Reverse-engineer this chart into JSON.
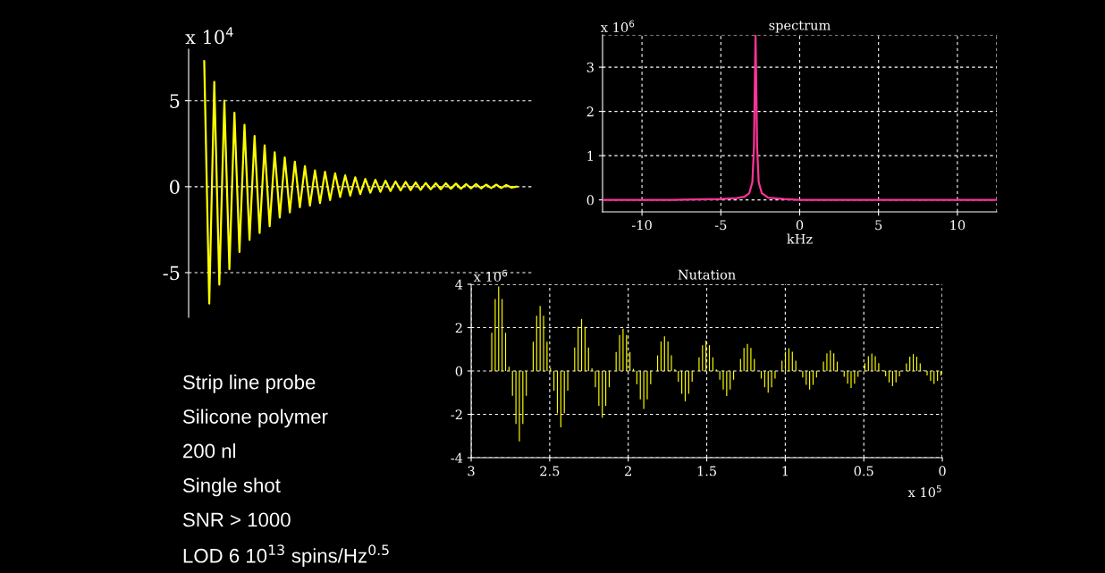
{
  "chart_data": [
    {
      "type": "line",
      "annotations": [
        "x 10$^{4}$"
      ],
      "tick_labels": "y",
      "grid": "y",
      "ylim": [
        -7.6,
        8
      ],
      "yticks": [
        -5,
        0,
        5
      ],
      "categories": [
        null,
        null,
        null,
        null,
        null,
        null,
        null,
        null,
        null,
        null,
        null,
        null,
        null,
        null,
        null,
        null,
        null,
        null,
        null,
        null,
        null,
        null,
        null,
        null,
        null,
        null,
        null,
        null,
        null,
        null,
        null,
        null,
        null,
        null,
        null,
        null,
        null,
        null,
        null,
        null,
        null,
        null,
        null,
        null,
        null,
        null,
        null,
        null,
        null,
        null,
        null,
        null,
        null,
        null,
        null,
        null,
        null,
        null,
        null,
        null,
        null,
        null,
        null
      ],
      "series": [
        {
          "color": "#ffff00",
          "values": [
            7.3,
            -6.8,
            6.1,
            -5.7,
            5.0,
            -4.8,
            4.3,
            -3.8,
            3.6,
            -3.1,
            2.95,
            -2.7,
            2.4,
            -2.3,
            2.0,
            -1.8,
            1.7,
            -1.5,
            1.45,
            -1.2,
            1.2,
            -1.1,
            0.95,
            -0.95,
            0.87,
            -0.78,
            0.78,
            -0.6,
            0.66,
            -0.52,
            0.55,
            -0.43,
            0.45,
            -0.35,
            0.4,
            -0.3,
            0.35,
            -0.25,
            0.3,
            -0.22,
            0.28,
            -0.2,
            0.25,
            -0.18,
            0.22,
            -0.15,
            0.2,
            -0.15,
            0.2,
            -0.12,
            0.18,
            -0.12,
            0.15,
            -0.1,
            0.15,
            -0.1,
            0.12,
            -0.08,
            0.12,
            -0.08,
            0.1,
            -0.05,
            0
          ]
        }
      ]
    },
    {
      "type": "line",
      "title": "spectrum",
      "xlabel": "kHz",
      "annotations": [
        "x 10$^{6}$"
      ],
      "grid": true,
      "xlim": [
        -12.5,
        12.5
      ],
      "xticks": [
        -10,
        -5,
        0,
        5,
        10
      ],
      "ylim": [
        -0.27,
        3.73
      ],
      "yticks": [
        0,
        1,
        2,
        3
      ],
      "x": [
        -12.5,
        -8,
        -5,
        -4,
        -3.5,
        -3.2,
        -3.0,
        -2.9,
        -2.85,
        -2.8,
        -2.75,
        -2.7,
        -2.6,
        -2.4,
        -2,
        -1,
        0,
        5,
        12.5
      ],
      "series": [
        {
          "color": "#ff3399",
          "values": [
            0,
            0,
            0.02,
            0.04,
            0.07,
            0.15,
            0.4,
            1.2,
            2.5,
            3.73,
            2.5,
            1.2,
            0.4,
            0.15,
            0.05,
            0.02,
            0,
            0,
            0
          ]
        }
      ]
    },
    {
      "type": "bar",
      "title": "Nutation",
      "annotations": [
        "x 10$^{6}$",
        "x 10$^{5}$"
      ],
      "grid": true,
      "xlim": [
        3,
        0
      ],
      "xticks": [
        3,
        2.5,
        2,
        1.5,
        1,
        0.5,
        0
      ],
      "ylim": [
        -4,
        4
      ],
      "yticks": [
        -4,
        -2,
        0,
        2,
        4
      ],
      "x": [
        2.869,
        2.847,
        2.825,
        2.803,
        2.781,
        2.759,
        2.737,
        2.715,
        2.693,
        2.671,
        2.649,
        2.627,
        2.605,
        2.583,
        2.561,
        2.539,
        2.517,
        2.495,
        2.473,
        2.451,
        2.429,
        2.407,
        2.385,
        2.363,
        2.341,
        2.319,
        2.297,
        2.275,
        2.253,
        2.231,
        2.209,
        2.187,
        2.165,
        2.143,
        2.121,
        2.099,
        2.077,
        2.055,
        2.033,
        2.011,
        1.989,
        1.967,
        1.945,
        1.923,
        1.901,
        1.879,
        1.857,
        1.835,
        1.813,
        1.791,
        1.769,
        1.747,
        1.725,
        1.703,
        1.681,
        1.659,
        1.637,
        1.615,
        1.593,
        1.571,
        1.549,
        1.527,
        1.505,
        1.483,
        1.461,
        1.439,
        1.417,
        1.395,
        1.373,
        1.351,
        1.329,
        1.307,
        1.285,
        1.263,
        1.241,
        1.219,
        1.197,
        1.175,
        1.153,
        1.131,
        1.109,
        1.087,
        1.065,
        1.043,
        1.021,
        0.999,
        0.977,
        0.955,
        0.933,
        0.911,
        0.889,
        0.867,
        0.845,
        0.823,
        0.801,
        0.779,
        0.757,
        0.735,
        0.713,
        0.691,
        0.669,
        0.647,
        0.625,
        0.603,
        0.581,
        0.559,
        0.537,
        0.515,
        0.493,
        0.471,
        0.449,
        0.427,
        0.405,
        0.383,
        0.361,
        0.339,
        0.317,
        0.295,
        0.273,
        0.251,
        0.229,
        0.207,
        0.185,
        0.163,
        0.141,
        0.119,
        0.097,
        0.075,
        0.053,
        0.031,
        0.009
      ],
      "series": [
        {
          "color": "#ffff00",
          "values": [
            1.76,
            3.32,
            3.9,
            3.32,
            1.76,
            0.2,
            -1.14,
            -2.44,
            -3.25,
            -2.44,
            -1.14,
            0,
            1.35,
            2.55,
            3.0,
            2.55,
            1.35,
            0.15,
            -0.91,
            -1.95,
            -2.6,
            -1.95,
            -0.91,
            0,
            1.08,
            2.04,
            2.4,
            2.04,
            1.08,
            0.12,
            -0.75,
            -1.61,
            -2.15,
            -1.61,
            -0.75,
            0,
            0.88,
            1.66,
            1.95,
            1.66,
            0.88,
            0.1,
            -0.61,
            -1.31,
            -1.75,
            -1.31,
            -0.61,
            0,
            0.72,
            1.36,
            1.6,
            1.36,
            0.72,
            0.08,
            -0.49,
            -1.05,
            -1.4,
            -1.05,
            -0.49,
            0,
            0.63,
            1.19,
            1.4,
            1.19,
            0.63,
            0.07,
            -0.4,
            -0.86,
            -1.15,
            -0.86,
            -0.4,
            0,
            0.56,
            1.06,
            1.25,
            1.06,
            0.56,
            null,
            -0.35,
            -0.75,
            -1.0,
            -0.75,
            -0.35,
            0,
            0.47,
            0.89,
            1.05,
            0.89,
            0.47,
            0.05,
            -0.3,
            -0.64,
            -0.85,
            -0.64,
            -0.3,
            0,
            0.43,
            0.81,
            0.95,
            0.81,
            0.43,
            null,
            -0.27,
            -0.59,
            -0.78,
            -0.59,
            -0.27,
            0,
            0.36,
            0.68,
            0.8,
            0.68,
            0.36,
            0.04,
            -0.25,
            -0.53,
            -0.7,
            -0.53,
            -0.25,
            0,
            0.35,
            0.66,
            0.78,
            0.66,
            0.35,
            0.04,
            -0.21,
            -0.45,
            -0.6,
            -0.45,
            -0.21
          ]
        }
      ]
    },
    {
      "type": "other",
      "annotations": [
        "Strip line probe",
        "Silicone polymer",
        "200 nl",
        "Single shot",
        "SNR > 1000",
        "LOD 6 10$^{13}$ spins/Hz$^{0.5}$"
      ]
    }
  ]
}
